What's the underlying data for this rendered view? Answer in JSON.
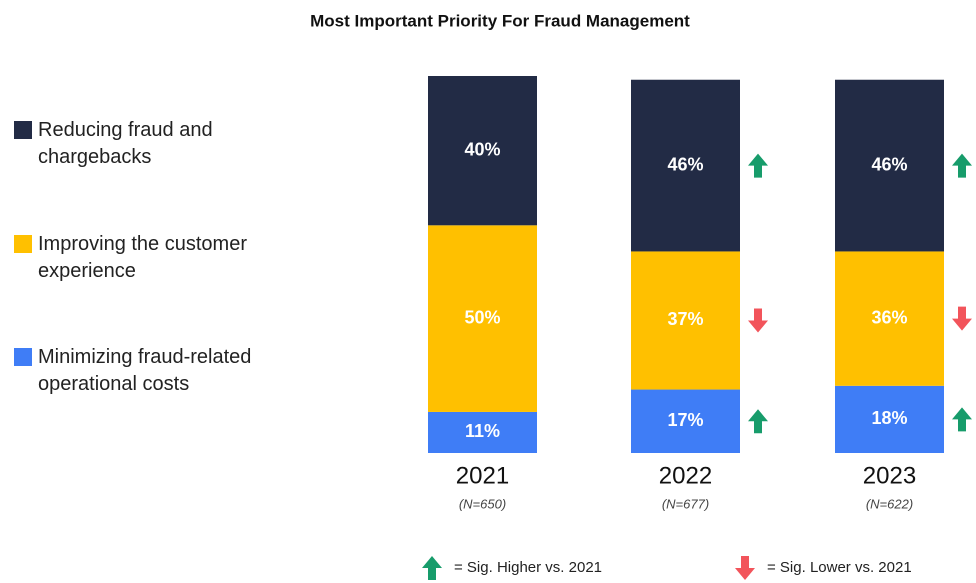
{
  "chart_data": {
    "type": "stacked_bar",
    "title": "Most Important Priority For Fraud Management",
    "categories": [
      "2021",
      "2022",
      "2023"
    ],
    "sample_sizes": [
      "(N=650)",
      "(N=677)",
      "(N=622)"
    ],
    "series": [
      {
        "name": "Minimizing fraud-related operational costs",
        "color": "#3f7df6",
        "values": [
          11,
          17,
          18
        ],
        "value_labels": [
          "11%",
          "17%",
          "18%"
        ],
        "sig": [
          null,
          "up",
          "up"
        ]
      },
      {
        "name": "Improving the customer experience",
        "color": "#ffc000",
        "values": [
          50,
          37,
          36
        ],
        "value_labels": [
          "50%",
          "37%",
          "36%"
        ],
        "sig": [
          null,
          "down",
          "down"
        ]
      },
      {
        "name": "Reducing fraud and chargebacks",
        "color": "#222b45",
        "values": [
          40,
          46,
          46
        ],
        "value_labels": [
          "40%",
          "46%",
          "46%"
        ],
        "sig": [
          null,
          "up",
          "up"
        ]
      }
    ],
    "sig_legend": [
      {
        "label": "= Sig. Higher vs. 2021",
        "direction": "up",
        "color": "#179c6b"
      },
      {
        "label": "= Sig. Lower vs. 2021",
        "direction": "down",
        "color": "#f2545b"
      }
    ]
  }
}
